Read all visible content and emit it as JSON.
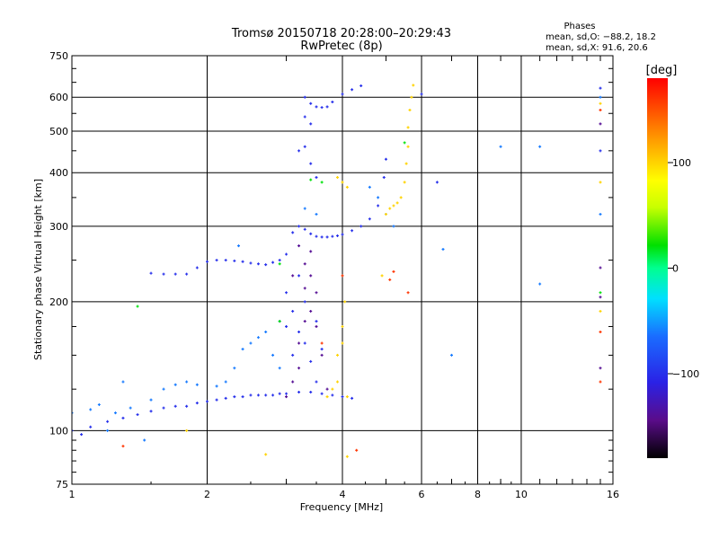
{
  "chart_data": {
    "type": "scatter",
    "title": "Tromsø 20150718 20:28:00–20:29:43",
    "subtitle": "RwPretec (8p)",
    "xlabel": "Frequency [MHz]",
    "ylabel": "Stationary phase Virtual Height [km]",
    "x_scale": "log",
    "y_scale": "log",
    "xlim": [
      1,
      16
    ],
    "ylim": [
      75,
      750
    ],
    "x_ticks": [
      1,
      2,
      4,
      6,
      8,
      10,
      16
    ],
    "x_tick_labels": [
      "1",
      "2",
      "4",
      "6",
      "8",
      "10",
      "16"
    ],
    "y_ticks": [
      75,
      100,
      200,
      300,
      400,
      500,
      600,
      750
    ],
    "y_tick_labels": [
      "75",
      "100",
      "200",
      "300",
      "400",
      "500",
      "600",
      "750"
    ],
    "grid": true,
    "stats": {
      "heading": "Phases",
      "o_line": "mean, sd,O: −88.2, 18.2",
      "x_line": "mean, sd,X:  91.6, 20.6"
    },
    "colorbar": {
      "label": "[deg]",
      "range": [
        -180,
        180
      ],
      "ticks": [
        100,
        0,
        -100
      ],
      "tick_labels": [
        "100",
        "0",
        "−100"
      ]
    },
    "series": [
      {
        "color_value": -100,
        "points": [
          [
            1.0,
            100
          ],
          [
            1.05,
            98
          ],
          [
            1.1,
            102
          ],
          [
            1.2,
            105
          ],
          [
            1.3,
            107
          ],
          [
            1.4,
            109
          ],
          [
            1.5,
            111
          ],
          [
            1.6,
            113
          ],
          [
            1.7,
            114
          ],
          [
            1.8,
            114
          ],
          [
            1.9,
            116
          ],
          [
            2.0,
            117
          ],
          [
            2.1,
            118
          ],
          [
            2.2,
            119
          ],
          [
            2.3,
            120
          ],
          [
            2.4,
            120
          ],
          [
            2.5,
            121
          ],
          [
            2.6,
            121
          ],
          [
            2.7,
            121
          ],
          [
            2.8,
            121
          ],
          [
            2.9,
            122
          ],
          [
            3.0,
            122
          ],
          [
            3.2,
            123
          ],
          [
            3.4,
            123
          ],
          [
            3.6,
            122
          ],
          [
            3.8,
            121
          ],
          [
            4.0,
            120
          ],
          [
            4.2,
            119
          ],
          [
            1.5,
            233
          ],
          [
            1.6,
            232
          ],
          [
            1.7,
            232
          ],
          [
            1.8,
            232
          ],
          [
            1.9,
            240
          ],
          [
            2.0,
            248
          ],
          [
            2.1,
            250
          ],
          [
            2.2,
            250
          ],
          [
            2.3,
            249
          ],
          [
            2.4,
            248
          ],
          [
            2.5,
            246
          ],
          [
            2.6,
            245
          ],
          [
            2.7,
            244
          ],
          [
            2.8,
            247
          ],
          [
            2.9,
            250
          ],
          [
            3.0,
            258
          ],
          [
            3.1,
            290
          ],
          [
            3.2,
            300
          ],
          [
            3.3,
            295
          ],
          [
            3.4,
            288
          ],
          [
            3.5,
            284
          ],
          [
            3.6,
            283
          ],
          [
            3.7,
            283
          ],
          [
            3.8,
            284
          ],
          [
            3.9,
            285
          ],
          [
            4.0,
            287
          ],
          [
            4.2,
            293
          ],
          [
            4.4,
            300
          ],
          [
            4.6,
            312
          ],
          [
            4.8,
            335
          ],
          [
            4.95,
            390
          ],
          [
            5.0,
            430
          ],
          [
            3.3,
            600
          ],
          [
            3.4,
            580
          ],
          [
            3.5,
            570
          ],
          [
            3.6,
            568
          ],
          [
            3.7,
            570
          ],
          [
            3.8,
            585
          ],
          [
            4.0,
            610
          ],
          [
            4.2,
            625
          ],
          [
            4.4,
            638
          ],
          [
            2.9,
            180
          ],
          [
            3.0,
            175
          ],
          [
            3.0,
            210
          ],
          [
            3.1,
            190
          ],
          [
            3.1,
            150
          ],
          [
            3.2,
            170
          ],
          [
            3.2,
            230
          ],
          [
            3.3,
            160
          ],
          [
            3.3,
            200
          ],
          [
            3.4,
            145
          ],
          [
            3.5,
            180
          ],
          [
            3.5,
            130
          ],
          [
            3.6,
            155
          ],
          [
            3.2,
            450
          ],
          [
            3.3,
            460
          ],
          [
            3.4,
            420
          ],
          [
            3.5,
            390
          ],
          [
            3.4,
            520
          ],
          [
            3.3,
            540
          ],
          [
            6.0,
            610
          ],
          [
            6.5,
            380
          ],
          [
            15.0,
            630
          ],
          [
            15.0,
            450
          ]
        ]
      },
      {
        "color_value": -60,
        "points": [
          [
            1.0,
            110
          ],
          [
            1.1,
            112
          ],
          [
            1.15,
            115
          ],
          [
            1.25,
            110
          ],
          [
            1.35,
            113
          ],
          [
            1.5,
            118
          ],
          [
            1.6,
            125
          ],
          [
            1.7,
            128
          ],
          [
            1.8,
            130
          ],
          [
            1.9,
            128
          ],
          [
            2.1,
            127
          ],
          [
            2.2,
            130
          ],
          [
            2.3,
            140
          ],
          [
            2.4,
            155
          ],
          [
            2.5,
            160
          ],
          [
            2.6,
            165
          ],
          [
            2.7,
            170
          ],
          [
            2.8,
            150
          ],
          [
            2.9,
            140
          ],
          [
            3.3,
            330
          ],
          [
            3.5,
            320
          ],
          [
            4.6,
            370
          ],
          [
            4.8,
            350
          ],
          [
            5.0,
            320
          ],
          [
            5.2,
            300
          ],
          [
            6.7,
            265
          ],
          [
            7.0,
            150
          ],
          [
            9.0,
            460
          ],
          [
            11.0,
            220
          ],
          [
            11.0,
            460
          ],
          [
            15.0,
            320
          ],
          [
            15.0,
            600
          ],
          [
            1.3,
            130
          ],
          [
            1.2,
            100
          ],
          [
            1.45,
            95
          ],
          [
            2.35,
            270
          ]
        ]
      },
      {
        "color_value": -140,
        "points": [
          [
            3.0,
            120
          ],
          [
            3.1,
            130
          ],
          [
            3.2,
            140
          ],
          [
            3.2,
            160
          ],
          [
            3.3,
            180
          ],
          [
            3.3,
            215
          ],
          [
            3.4,
            190
          ],
          [
            3.4,
            230
          ],
          [
            3.5,
            175
          ],
          [
            3.5,
            210
          ],
          [
            3.6,
            150
          ],
          [
            3.7,
            125
          ],
          [
            3.1,
            230
          ],
          [
            3.2,
            270
          ],
          [
            3.3,
            245
          ],
          [
            3.4,
            262
          ],
          [
            15.0,
            240
          ],
          [
            15.0,
            205
          ],
          [
            15.0,
            140
          ],
          [
            15.0,
            520
          ]
        ]
      },
      {
        "color_value": 20,
        "points": [
          [
            2.9,
            180
          ],
          [
            3.4,
            385
          ],
          [
            3.6,
            380
          ],
          [
            1.4,
            195
          ],
          [
            2.9,
            245
          ],
          [
            5.5,
            470
          ],
          [
            15.0,
            210
          ]
        ]
      },
      {
        "color_value": 100,
        "points": [
          [
            3.7,
            120
          ],
          [
            3.8,
            125
          ],
          [
            3.9,
            130
          ],
          [
            3.9,
            150
          ],
          [
            4.0,
            160
          ],
          [
            4.0,
            175
          ],
          [
            4.05,
            200
          ],
          [
            4.1,
            120
          ],
          [
            5.0,
            320
          ],
          [
            5.1,
            330
          ],
          [
            5.2,
            335
          ],
          [
            5.3,
            340
          ],
          [
            5.4,
            350
          ],
          [
            5.5,
            380
          ],
          [
            5.55,
            420
          ],
          [
            5.6,
            460
          ],
          [
            5.6,
            510
          ],
          [
            5.65,
            560
          ],
          [
            5.7,
            600
          ],
          [
            5.75,
            640
          ],
          [
            4.0,
            380
          ],
          [
            4.1,
            370
          ],
          [
            3.9,
            390
          ],
          [
            4.9,
            230
          ],
          [
            4.1,
            87
          ],
          [
            2.7,
            88
          ],
          [
            15.0,
            380
          ],
          [
            15.0,
            190
          ],
          [
            15.0,
            580
          ],
          [
            1.8,
            100
          ]
        ]
      },
      {
        "color_value": 160,
        "points": [
          [
            5.2,
            235
          ],
          [
            5.1,
            225
          ],
          [
            5.6,
            210
          ],
          [
            15.0,
            170
          ],
          [
            15.0,
            130
          ],
          [
            15.0,
            560
          ],
          [
            3.6,
            160
          ],
          [
            4.0,
            230
          ],
          [
            1.3,
            92
          ],
          [
            4.3,
            90
          ]
        ]
      }
    ]
  }
}
